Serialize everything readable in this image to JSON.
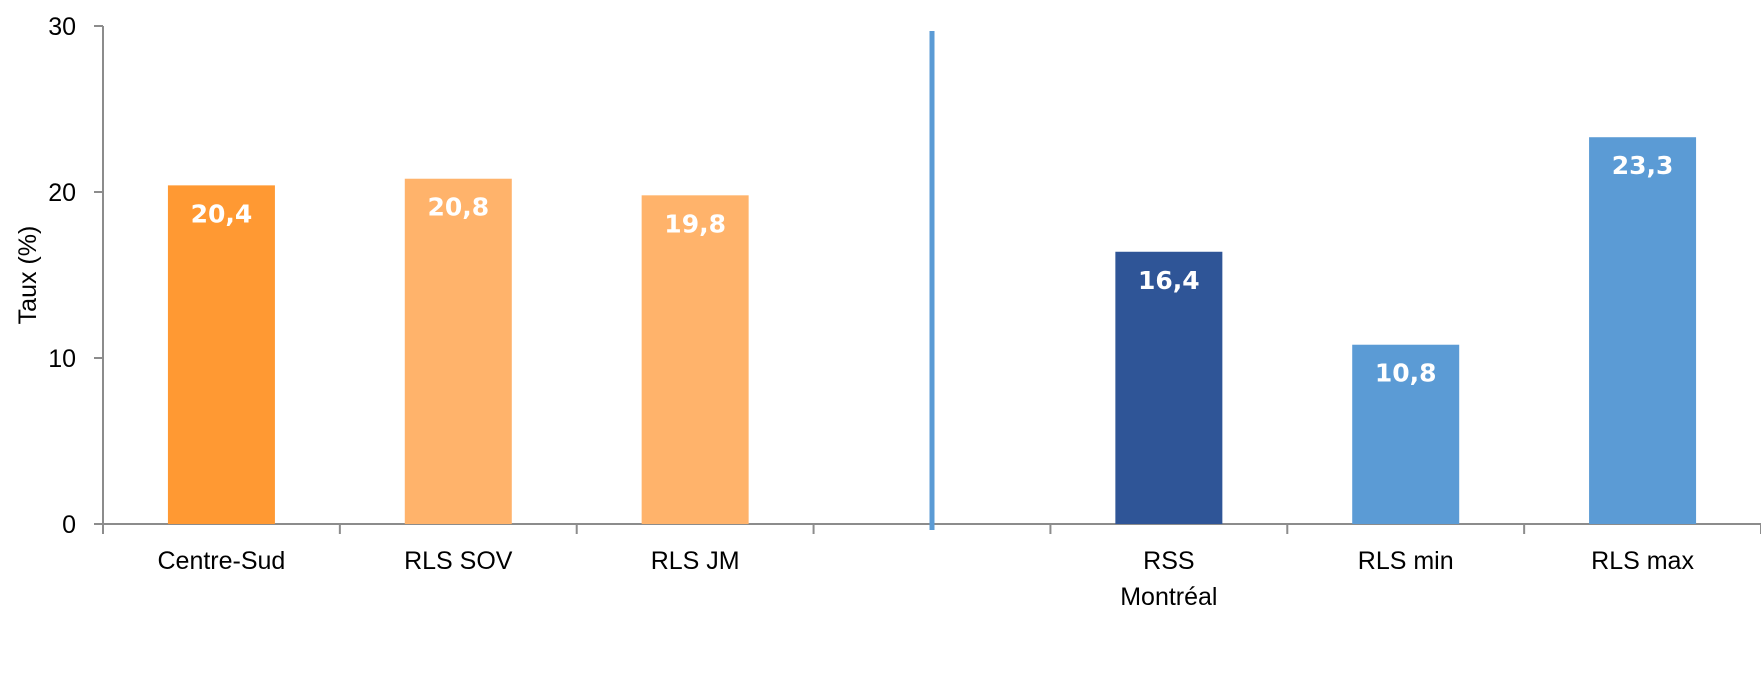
{
  "chart_data": {
    "type": "bar",
    "ylabel": "Taux (%)",
    "ylim": [
      0,
      30
    ],
    "yticks": [
      0,
      10,
      20,
      30
    ],
    "grid": false,
    "legend": "none",
    "categories": [
      {
        "label": "Centre-Sud",
        "lines": [
          "Centre-Sud"
        ]
      },
      {
        "label": "RLS SOV",
        "lines": [
          "RLS SOV"
        ]
      },
      {
        "label": "RLS JM",
        "lines": [
          "RLS JM"
        ]
      },
      {
        "label": "",
        "lines": []
      },
      {
        "label": "RSS Montréal",
        "lines": [
          "RSS",
          "Montréal"
        ]
      },
      {
        "label": "RLS min",
        "lines": [
          "RLS min"
        ]
      },
      {
        "label": "RLS max",
        "lines": [
          "RLS max"
        ]
      }
    ],
    "values": [
      20.4,
      20.8,
      19.8,
      null,
      16.4,
      10.8,
      23.3
    ],
    "value_labels": [
      "20,4",
      "20,8",
      "19,8",
      "",
      "16,4",
      "10,8",
      "23,3"
    ],
    "colors": [
      "#FF9933",
      "#FFB36B",
      "#FFB36B",
      null,
      "#2F5597",
      "#5B9BD5",
      "#5B9BD5"
    ],
    "separator_color": "#5B9BD5",
    "axis_color": "#8C8C8C"
  }
}
